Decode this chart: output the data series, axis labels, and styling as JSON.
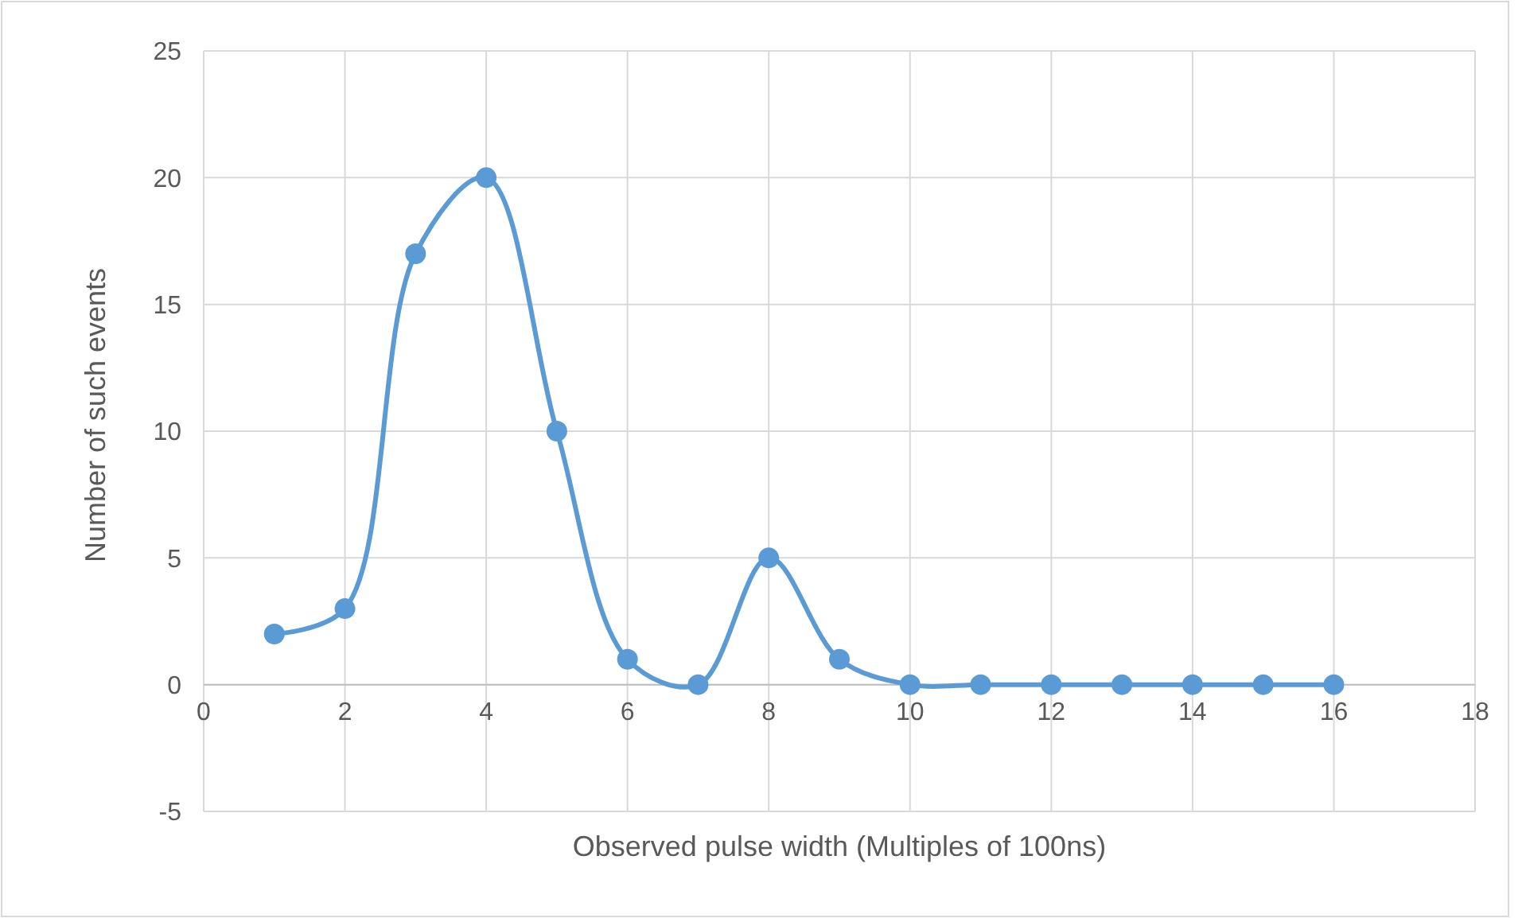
{
  "chart_data": {
    "type": "line",
    "xlabel": "Observed pulse width (Multiples of 100ns)",
    "ylabel": "Number of such events",
    "x": [
      1,
      2,
      3,
      4,
      5,
      6,
      7,
      8,
      9,
      10,
      11,
      12,
      13,
      14,
      15,
      16
    ],
    "series": [
      {
        "color": "#5b9bd5",
        "values": [
          2,
          3,
          17,
          20,
          10,
          1,
          0,
          5,
          1,
          0,
          0,
          0,
          0,
          0,
          0,
          0
        ]
      }
    ],
    "xlim": [
      0,
      18
    ],
    "xticks": [
      0,
      2,
      4,
      6,
      8,
      10,
      12,
      14,
      16,
      18
    ],
    "ylim": [
      -5,
      25
    ],
    "yticks": [
      -5,
      0,
      5,
      10,
      15,
      20,
      25
    ],
    "grid": true,
    "marker": "circle",
    "line_style": "solid"
  }
}
